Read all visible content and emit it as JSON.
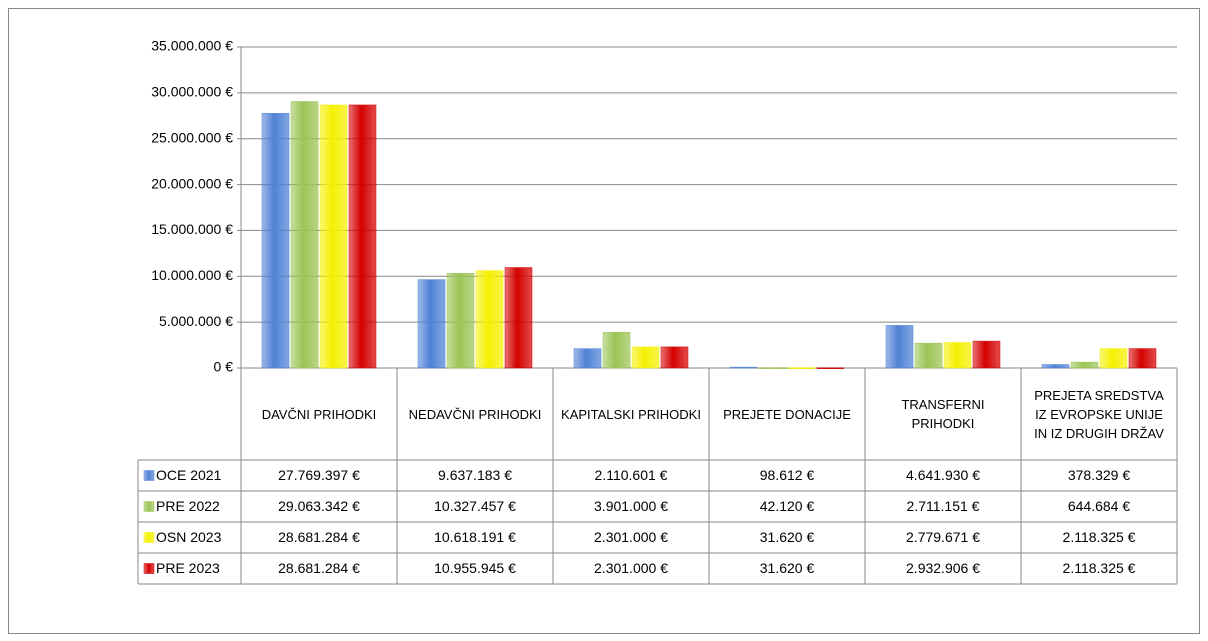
{
  "chart_data": {
    "type": "bar",
    "categories": [
      "DAVČNI PRIHODKI",
      "NEDAVČNI PRIHODKI",
      "KAPITALSKI PRIHODKI",
      "PREJETE DONACIJE",
      "TRANSFERNI PRIHODKI",
      "PREJETA SREDSTVA IZ EVROPSKE UNIJE IN IZ DRUGIH DRŽAV"
    ],
    "series": [
      {
        "name": "OCE 2021",
        "color": "#4f81d6",
        "values": [
          27769397,
          9637183,
          2110601,
          98612,
          4641930,
          378329
        ],
        "value_labels": [
          "27.769.397 €",
          "9.637.183 €",
          "2.110.601 €",
          "98.612 €",
          "4.641.930 €",
          "378.329 €"
        ]
      },
      {
        "name": "PRE 2022",
        "color": "#9bc455",
        "values": [
          29063342,
          10327457,
          3901000,
          42120,
          2711151,
          644684
        ],
        "value_labels": [
          "29.063.342 €",
          "10.327.457 €",
          "3.901.000 €",
          "42.120 €",
          "2.711.151 €",
          "644.684 €"
        ]
      },
      {
        "name": "OSN 2023",
        "color": "#f5f000",
        "values": [
          28681284,
          10618191,
          2301000,
          31620,
          2779671,
          2118325
        ],
        "value_labels": [
          "28.681.284 €",
          "10.618.191 €",
          "2.301.000 €",
          "31.620 €",
          "2.779.671 €",
          "2.118.325 €"
        ]
      },
      {
        "name": "PRE 2023",
        "color": "#d40000",
        "values": [
          28681284,
          10955945,
          2301000,
          31620,
          2932906,
          2118325
        ],
        "value_labels": [
          "28.681.284 €",
          "10.955.945 €",
          "2.301.000 €",
          "31.620 €",
          "2.932.906 €",
          "2.118.325 €"
        ]
      }
    ],
    "ylim": [
      0,
      35000000
    ],
    "yticks": [
      {
        "value": 0,
        "label": "0 €"
      },
      {
        "value": 5000000,
        "label": "5.000.000 €"
      },
      {
        "value": 10000000,
        "label": "10.000.000 €"
      },
      {
        "value": 15000000,
        "label": "15.000.000 €"
      },
      {
        "value": 20000000,
        "label": "20.000.000 €"
      },
      {
        "value": 25000000,
        "label": "25.000.000 €"
      },
      {
        "value": 30000000,
        "label": "30.000.000 €"
      },
      {
        "value": 35000000,
        "label": "35.000.000 €"
      }
    ],
    "grid": true,
    "legend": "table"
  }
}
